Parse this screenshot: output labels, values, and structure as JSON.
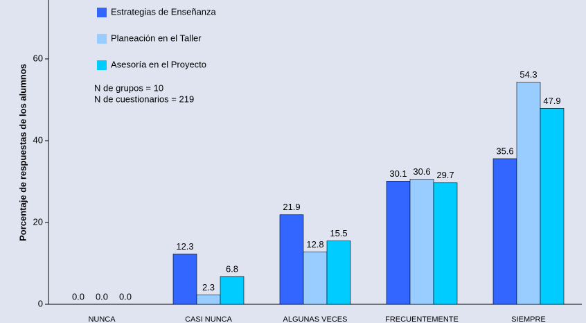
{
  "chart_data": {
    "type": "bar",
    "y_label": "Porcentaje de respuestas de los alumnos",
    "annotations": [
      "N de grupos = 10",
      "N de cuestionarios = 219"
    ],
    "categories": [
      "NUNCA",
      "CASI NUNCA",
      "ALGUNAS VECES",
      "FRECUENTEMENTE",
      "SIEMPRE"
    ],
    "series": [
      {
        "name": "Estrategias de Enseñanza",
        "color": "#3366ff",
        "values": [
          0,
          12.3,
          21.9,
          30.1,
          35.6
        ],
        "value_labels": [
          "0.0",
          "12.3",
          "21.9",
          "30.1",
          "35.6"
        ]
      },
      {
        "name": "Planeación en el Taller",
        "color": "#99ccff",
        "values": [
          0,
          2.3,
          12.8,
          30.6,
          54.3
        ],
        "value_labels": [
          "0.0",
          "2.3",
          "12.8",
          "30.6",
          "54.3"
        ]
      },
      {
        "name": "Asesoría en el Proyecto",
        "color": "#00ccff",
        "values": [
          0,
          6.8,
          15.5,
          29.7,
          47.9
        ],
        "value_labels": [
          "0.0",
          "6.8",
          "15.5",
          "29.7",
          "47.9"
        ]
      }
    ],
    "ylim": [
      0,
      74.4
    ],
    "yticks": [
      0,
      20,
      40,
      60
    ],
    "grid": false
  }
}
